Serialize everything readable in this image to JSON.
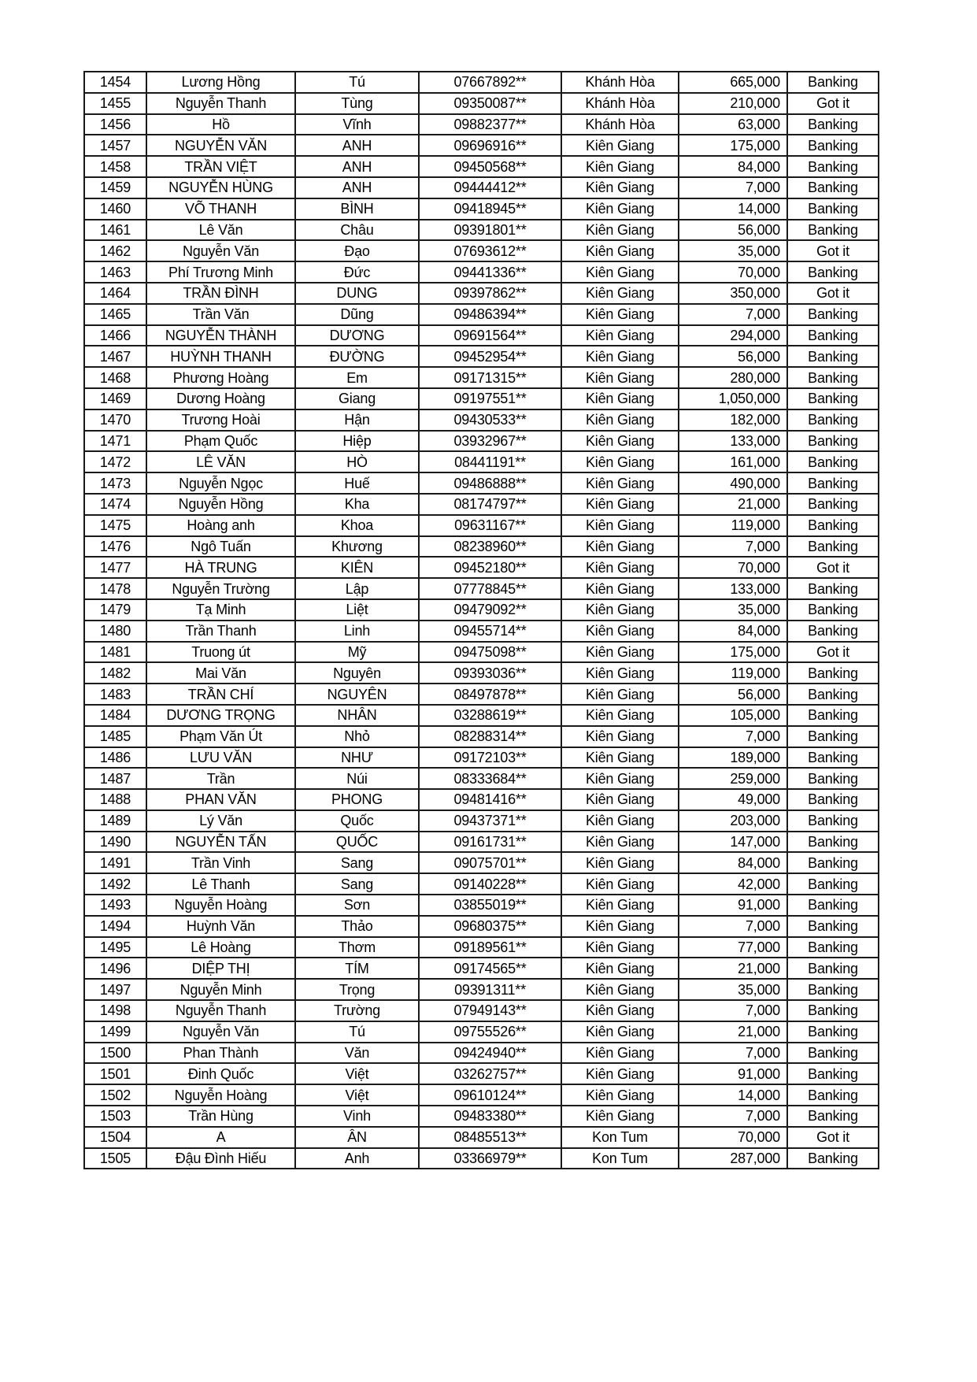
{
  "table": {
    "rows": [
      [
        "1454",
        "Lương Hồng",
        "Tú",
        "07667892**",
        "Khánh Hòa",
        "665,000",
        "Banking"
      ],
      [
        "1455",
        "Nguyễn Thanh",
        "Tùng",
        "09350087**",
        "Khánh Hòa",
        "210,000",
        "Got it"
      ],
      [
        "1456",
        "Hồ",
        "Vĩnh",
        "09882377**",
        "Khánh Hòa",
        "63,000",
        "Banking"
      ],
      [
        "1457",
        "NGUYỄN VĂN",
        "ANH",
        "09696916**",
        "Kiên Giang",
        "175,000",
        "Banking"
      ],
      [
        "1458",
        "TRẦN VIỆT",
        "ANH",
        "09450568**",
        "Kiên Giang",
        "84,000",
        "Banking"
      ],
      [
        "1459",
        "NGUYỄN HÙNG",
        "ANH",
        "09444412**",
        "Kiên Giang",
        "7,000",
        "Banking"
      ],
      [
        "1460",
        "VÕ THANH",
        "BÌNH",
        "09418945**",
        "Kiên Giang",
        "14,000",
        "Banking"
      ],
      [
        "1461",
        "Lê Văn",
        "Châu",
        "09391801**",
        "Kiên Giang",
        "56,000",
        "Banking"
      ],
      [
        "1462",
        "Nguyễn Văn",
        "Đạo",
        "07693612**",
        "Kiên Giang",
        "35,000",
        "Got it"
      ],
      [
        "1463",
        "Phí Trương Minh",
        "Đức",
        "09441336**",
        "Kiên Giang",
        "70,000",
        "Banking"
      ],
      [
        "1464",
        "TRẦN ĐÌNH",
        "DUNG",
        "09397862**",
        "Kiên Giang",
        "350,000",
        "Got it"
      ],
      [
        "1465",
        "Trần Văn",
        "Dũng",
        "09486394**",
        "Kiên Giang",
        "7,000",
        "Banking"
      ],
      [
        "1466",
        "NGUYỄN THÀNH",
        "DƯƠNG",
        "09691564**",
        "Kiên Giang",
        "294,000",
        "Banking"
      ],
      [
        "1467",
        "HUỲNH THANH",
        "ĐƯỜNG",
        "09452954**",
        "Kiên Giang",
        "56,000",
        "Banking"
      ],
      [
        "1468",
        "Phương Hoàng",
        "Em",
        "09171315**",
        "Kiên Giang",
        "280,000",
        "Banking"
      ],
      [
        "1469",
        "Dương Hoàng",
        "Giang",
        "09197551**",
        "Kiên Giang",
        "1,050,000",
        "Banking"
      ],
      [
        "1470",
        "Trương Hoài",
        "Hận",
        "09430533**",
        "Kiên Giang",
        "182,000",
        "Banking"
      ],
      [
        "1471",
        "Phạm Quốc",
        "Hiệp",
        "03932967**",
        "Kiên Giang",
        "133,000",
        "Banking"
      ],
      [
        "1472",
        "LÊ VĂN",
        "HÒ",
        "08441191**",
        "Kiên Giang",
        "161,000",
        "Banking"
      ],
      [
        "1473",
        "Nguyễn Ngọc",
        "Huế",
        "09486888**",
        "Kiên Giang",
        "490,000",
        "Banking"
      ],
      [
        "1474",
        "Nguyễn Hồng",
        "Kha",
        "08174797**",
        "Kiên Giang",
        "21,000",
        "Banking"
      ],
      [
        "1475",
        "Hoàng anh",
        "Khoa",
        "09631167**",
        "Kiên Giang",
        "119,000",
        "Banking"
      ],
      [
        "1476",
        "Ngô Tuấn",
        "Khương",
        "08238960**",
        "Kiên Giang",
        "7,000",
        "Banking"
      ],
      [
        "1477",
        "HÀ TRUNG",
        "KIÊN",
        "09452180**",
        "Kiên Giang",
        "70,000",
        "Got it"
      ],
      [
        "1478",
        "Nguyễn Trường",
        "Lập",
        "07778845**",
        "Kiên Giang",
        "133,000",
        "Banking"
      ],
      [
        "1479",
        "Tạ Minh",
        "Liệt",
        "09479092**",
        "Kiên Giang",
        "35,000",
        "Banking"
      ],
      [
        "1480",
        "Trần Thanh",
        "Linh",
        "09455714**",
        "Kiên Giang",
        "84,000",
        "Banking"
      ],
      [
        "1481",
        "Truong út",
        "Mỹ",
        "09475098**",
        "Kiên Giang",
        "175,000",
        "Got it"
      ],
      [
        "1482",
        "Mai Văn",
        "Nguyên",
        "09393036**",
        "Kiên Giang",
        "119,000",
        "Banking"
      ],
      [
        "1483",
        "TRẦN CHÍ",
        "NGUYÊN",
        "08497878**",
        "Kiên Giang",
        "56,000",
        "Banking"
      ],
      [
        "1484",
        "DƯƠNG TRỌNG",
        "NHÂN",
        "03288619**",
        "Kiên Giang",
        "105,000",
        "Banking"
      ],
      [
        "1485",
        "Phạm Văn Út",
        "Nhỏ",
        "08288314**",
        "Kiên Giang",
        "7,000",
        "Banking"
      ],
      [
        "1486",
        "LƯU VĂN",
        "NHƯ",
        "09172103**",
        "Kiên Giang",
        "189,000",
        "Banking"
      ],
      [
        "1487",
        "Trần",
        "Núi",
        "08333684**",
        "Kiên Giang",
        "259,000",
        "Banking"
      ],
      [
        "1488",
        "PHAN VĂN",
        "PHONG",
        "09481416**",
        "Kiên Giang",
        "49,000",
        "Banking"
      ],
      [
        "1489",
        "Lý Văn",
        "Quốc",
        "09437371**",
        "Kiên Giang",
        "203,000",
        "Banking"
      ],
      [
        "1490",
        "NGUYỄN TẤN",
        "QUỐC",
        "09161731**",
        "Kiên Giang",
        "147,000",
        "Banking"
      ],
      [
        "1491",
        "Trần Vinh",
        "Sang",
        "09075701**",
        "Kiên Giang",
        "84,000",
        "Banking"
      ],
      [
        "1492",
        "Lê Thanh",
        "Sang",
        "09140228**",
        "Kiên Giang",
        "42,000",
        "Banking"
      ],
      [
        "1493",
        "Nguyễn Hoàng",
        "Sơn",
        "03855019**",
        "Kiên Giang",
        "91,000",
        "Banking"
      ],
      [
        "1494",
        "Huỳnh Văn",
        "Thảo",
        "09680375**",
        "Kiên Giang",
        "7,000",
        "Banking"
      ],
      [
        "1495",
        "Lê Hoàng",
        "Thơm",
        "09189561**",
        "Kiên Giang",
        "77,000",
        "Banking"
      ],
      [
        "1496",
        "DIỆP THỊ",
        "TÍM",
        "09174565**",
        "Kiên Giang",
        "21,000",
        "Banking"
      ],
      [
        "1497",
        "Nguyễn Minh",
        "Trọng",
        "09391311**",
        "Kiên Giang",
        "35,000",
        "Banking"
      ],
      [
        "1498",
        "Nguyễn Thanh",
        "Trường",
        "07949143**",
        "Kiên Giang",
        "7,000",
        "Banking"
      ],
      [
        "1499",
        "Nguyễn Văn",
        "Tú",
        "09755526**",
        "Kiên Giang",
        "21,000",
        "Banking"
      ],
      [
        "1500",
        "Phan Thành",
        "Văn",
        "09424940**",
        "Kiên Giang",
        "7,000",
        "Banking"
      ],
      [
        "1501",
        "Đinh Quốc",
        "Việt",
        "03262757**",
        "Kiên Giang",
        "91,000",
        "Banking"
      ],
      [
        "1502",
        "Nguyễn Hoàng",
        "Việt",
        "09610124**",
        "Kiên Giang",
        "14,000",
        "Banking"
      ],
      [
        "1503",
        "Trần Hùng",
        "Vinh",
        "09483380**",
        "Kiên Giang",
        "7,000",
        "Banking"
      ],
      [
        "1504",
        "A",
        "ÂN",
        "08485513**",
        "Kon Tum",
        "70,000",
        "Got it"
      ],
      [
        "1505",
        "Đậu Đình Hiếu",
        "Anh",
        "03366979**",
        "Kon Tum",
        "287,000",
        "Banking"
      ]
    ]
  }
}
